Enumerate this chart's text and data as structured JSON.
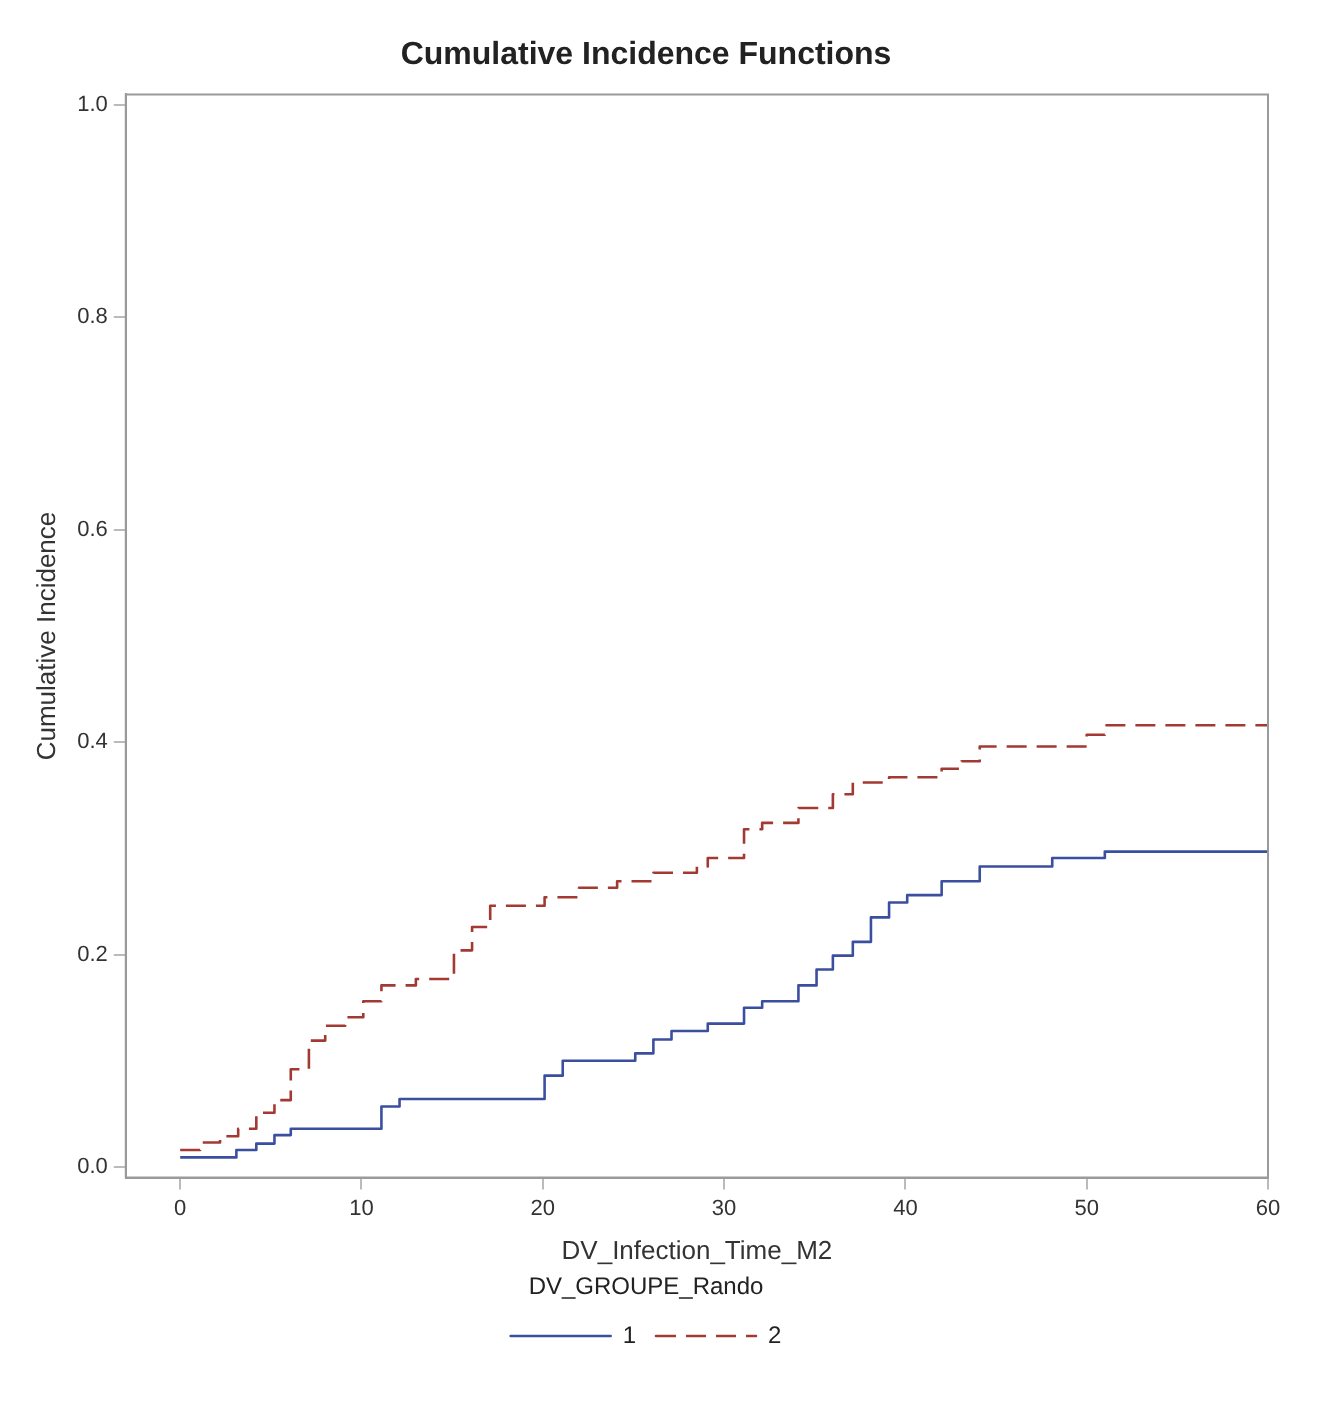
{
  "chart_data": {
    "type": "step",
    "title": "Cumulative Incidence Functions",
    "xlabel": "DV_Infection_Time_M2",
    "ylabel": "Cumulative Incidence",
    "legend_title": "DV_GROUPE_Rando",
    "legend": "bottom",
    "grid": false,
    "xlim": [
      -3,
      60
    ],
    "xticks": [
      0,
      10,
      20,
      30,
      40,
      50,
      60
    ],
    "ylim": [
      -0.01,
      1.01
    ],
    "yticks": [
      {
        "value": 0,
        "label": "0.0"
      },
      {
        "value": 0.2,
        "label": "0.2"
      },
      {
        "value": 0.4,
        "label": "0.4"
      },
      {
        "value": 0.6,
        "label": "0.6"
      },
      {
        "value": 0.8,
        "label": "0.8"
      },
      {
        "value": 1,
        "label": "1.0"
      }
    ],
    "series": [
      {
        "name": "1",
        "color": "#3b4fa0",
        "line_style": "solid",
        "x": [
          0,
          3.1,
          4.2,
          5.2,
          6.1,
          11.1,
          12.1,
          20.1,
          21.1,
          25.1,
          26.1,
          27.1,
          29.1,
          31.1,
          32.1,
          34.1,
          35.1,
          36.0,
          37.1,
          38.1,
          39.1,
          40.1,
          42.0,
          44.1,
          48.1,
          51.0,
          60
        ],
        "values": [
          0.009,
          0.016,
          0.022,
          0.03,
          0.036,
          0.057,
          0.064,
          0.086,
          0.1,
          0.107,
          0.12,
          0.128,
          0.135,
          0.15,
          0.156,
          0.171,
          0.186,
          0.199,
          0.212,
          0.235,
          0.249,
          0.256,
          0.269,
          0.283,
          0.291,
          0.297,
          0.297
        ]
      },
      {
        "name": "2",
        "color": "#a23a33",
        "line_style": "dashed",
        "x": [
          0,
          1.1,
          2.2,
          3.2,
          4.2,
          5.2,
          6.1,
          7.1,
          8.0,
          9.1,
          10.1,
          11.1,
          13.0,
          15.1,
          16.1,
          17.1,
          20.1,
          22.0,
          24.1,
          26.1,
          28.5,
          29.1,
          31.1,
          32.1,
          34.1,
          36.0,
          37.1,
          39.1,
          42.0,
          43.1,
          44.1,
          50.0,
          51.0,
          60
        ],
        "values": [
          0.016,
          0.023,
          0.029,
          0.036,
          0.051,
          0.063,
          0.092,
          0.119,
          0.133,
          0.141,
          0.156,
          0.171,
          0.177,
          0.204,
          0.226,
          0.246,
          0.254,
          0.263,
          0.269,
          0.277,
          0.283,
          0.291,
          0.318,
          0.324,
          0.338,
          0.351,
          0.362,
          0.367,
          0.375,
          0.382,
          0.396,
          0.407,
          0.416,
          0.416
        ]
      }
    ]
  }
}
